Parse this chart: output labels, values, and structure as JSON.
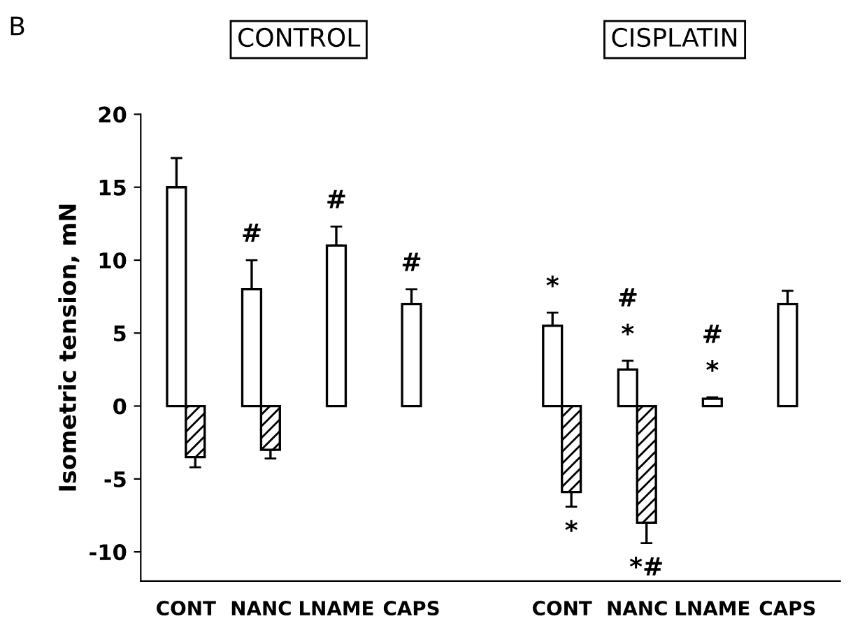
{
  "chart_data": {
    "type": "bar",
    "ylabel": "Isometric tension, mN",
    "categories": [
      "CONT",
      "NANC",
      "LNAME",
      "CAPS",
      null,
      "CONT",
      "NANC",
      "LNAME",
      "CAPS"
    ],
    "series": [
      {
        "color": "#ffffff",
        "values": [
          15,
          8,
          11,
          7,
          null,
          5.5,
          2.5,
          0.5,
          7
        ],
        "errors": [
          [
            15,
            17
          ],
          [
            8,
            10
          ],
          [
            11,
            12.3
          ],
          [
            7,
            8
          ],
          null,
          [
            5.5,
            6.4
          ],
          [
            2.5,
            3.1
          ],
          [
            0.5,
            0.6
          ],
          [
            7,
            7.9
          ]
        ],
        "value_labels": [
          null,
          "#",
          "#",
          "#",
          null,
          "*",
          "#\n*",
          "#\n*",
          null
        ]
      },
      {
        "color": "#000000",
        "values": [
          -3.5,
          -3,
          null,
          null,
          null,
          -5.9,
          -8.0,
          null,
          null
        ],
        "errors": [
          [
            -4.2,
            -3.5
          ],
          [
            -3.6,
            -3
          ],
          null,
          null,
          null,
          [
            -6.9,
            -5.9
          ],
          [
            -9.4,
            -8.0
          ],
          null,
          null
        ],
        "value_labels": [
          null,
          null,
          null,
          null,
          null,
          "*",
          "*#",
          null,
          null
        ]
      }
    ],
    "ylim": [
      -12,
      20
    ],
    "yticks": [
      -10,
      -5,
      0,
      5,
      10,
      15,
      20
    ],
    "grid": false,
    "legend": false,
    "annotations": [
      "B",
      "CONTROL",
      "CISPLATIN"
    ]
  }
}
